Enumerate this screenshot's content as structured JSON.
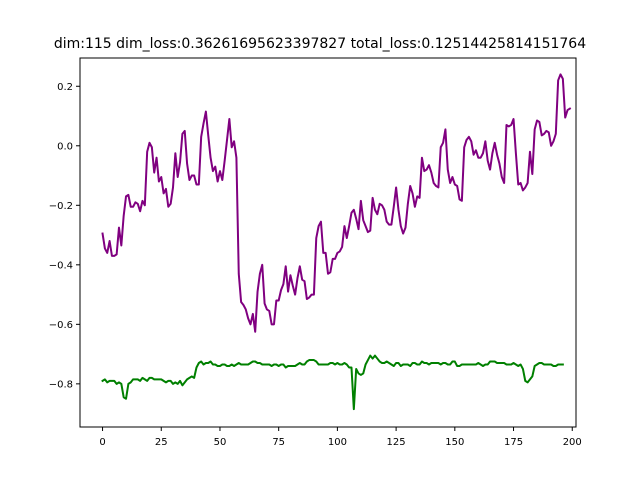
{
  "chart_data": {
    "type": "line",
    "title": "dim:115 dim_loss:0.36261695623397827 total_loss:0.12514425814151764",
    "xlabel": "",
    "ylabel": "",
    "xlim": [
      -9.6,
      201.6
    ],
    "ylim": [
      -0.945,
      0.295
    ],
    "x_ticks": [
      0,
      25,
      50,
      75,
      100,
      125,
      150,
      175,
      200
    ],
    "y_ticks": [
      -0.8,
      -0.6,
      -0.4,
      -0.2,
      0.0,
      0.2
    ],
    "y_tick_labels": [
      "−0.8",
      "−0.6",
      "−0.4",
      "−0.2",
      "0.0",
      "0.2"
    ],
    "grid": false,
    "legend": "none",
    "series": [
      {
        "color": "#800080",
        "x_start": 0,
        "values": [
          -0.295,
          -0.345,
          -0.36,
          -0.32,
          -0.37,
          -0.37,
          -0.365,
          -0.275,
          -0.335,
          -0.235,
          -0.17,
          -0.165,
          -0.205,
          -0.205,
          -0.19,
          -0.195,
          -0.22,
          -0.185,
          -0.2,
          -0.02,
          0.01,
          -0.005,
          -0.09,
          -0.04,
          -0.12,
          -0.105,
          -0.16,
          -0.145,
          -0.205,
          -0.195,
          -0.14,
          -0.025,
          -0.105,
          -0.055,
          0.04,
          0.05,
          -0.06,
          -0.115,
          -0.1,
          -0.1,
          -0.13,
          -0.13,
          0.03,
          0.075,
          0.115,
          0.035,
          -0.04,
          -0.085,
          -0.07,
          -0.12,
          -0.085,
          -0.115,
          -0.05,
          0.02,
          0.09,
          -0.005,
          0.015,
          -0.04,
          -0.43,
          -0.525,
          -0.535,
          -0.55,
          -0.58,
          -0.6,
          -0.565,
          -0.625,
          -0.49,
          -0.43,
          -0.4,
          -0.53,
          -0.55,
          -0.555,
          -0.6,
          -0.6,
          -0.52,
          -0.52,
          -0.485,
          -0.465,
          -0.405,
          -0.49,
          -0.435,
          -0.47,
          -0.5,
          -0.445,
          -0.405,
          -0.45,
          -0.455,
          -0.515,
          -0.51,
          -0.5,
          -0.5,
          -0.31,
          -0.27,
          -0.255,
          -0.36,
          -0.36,
          -0.43,
          -0.425,
          -0.38,
          -0.38,
          -0.36,
          -0.355,
          -0.34,
          -0.27,
          -0.31,
          -0.27,
          -0.225,
          -0.215,
          -0.245,
          -0.28,
          -0.185,
          -0.25,
          -0.27,
          -0.29,
          -0.285,
          -0.175,
          -0.215,
          -0.23,
          -0.195,
          -0.2,
          -0.215,
          -0.255,
          -0.265,
          -0.265,
          -0.205,
          -0.14,
          -0.215,
          -0.27,
          -0.295,
          -0.275,
          -0.195,
          -0.135,
          -0.16,
          -0.205,
          -0.17,
          -0.175,
          -0.04,
          -0.085,
          -0.08,
          -0.065,
          -0.09,
          -0.125,
          -0.135,
          -0.14,
          -0.005,
          0.01,
          0.055,
          -0.08,
          -0.125,
          -0.105,
          -0.13,
          -0.135,
          -0.18,
          -0.185,
          -0.005,
          0.02,
          0.03,
          0.015,
          -0.03,
          -0.015,
          -0.04,
          -0.04,
          -0.025,
          0.015,
          -0.05,
          -0.08,
          -0.025,
          0.01,
          -0.03,
          -0.06,
          -0.105,
          -0.125,
          0.07,
          0.065,
          0.07,
          0.09,
          -0.025,
          -0.13,
          -0.125,
          -0.15,
          -0.14,
          -0.125,
          -0.02,
          -0.095,
          0.055,
          0.085,
          0.08,
          0.035,
          0.04,
          0.05,
          0.045,
          0,
          0.015,
          0.04,
          0.22,
          0.24,
          0.225,
          0.095,
          0.12,
          0.125
        ]
      },
      {
        "color": "#008000",
        "x_start": 0,
        "values": [
          -0.79,
          -0.785,
          -0.795,
          -0.79,
          -0.79,
          -0.79,
          -0.8,
          -0.795,
          -0.8,
          -0.845,
          -0.85,
          -0.8,
          -0.795,
          -0.785,
          -0.785,
          -0.785,
          -0.79,
          -0.78,
          -0.785,
          -0.79,
          -0.78,
          -0.78,
          -0.785,
          -0.785,
          -0.785,
          -0.785,
          -0.79,
          -0.795,
          -0.79,
          -0.79,
          -0.8,
          -0.795,
          -0.8,
          -0.79,
          -0.805,
          -0.795,
          -0.785,
          -0.78,
          -0.775,
          -0.78,
          -0.745,
          -0.73,
          -0.725,
          -0.735,
          -0.73,
          -0.73,
          -0.725,
          -0.735,
          -0.735,
          -0.74,
          -0.74,
          -0.735,
          -0.735,
          -0.74,
          -0.74,
          -0.735,
          -0.74,
          -0.735,
          -0.73,
          -0.735,
          -0.735,
          -0.735,
          -0.735,
          -0.73,
          -0.725,
          -0.725,
          -0.73,
          -0.73,
          -0.735,
          -0.735,
          -0.735,
          -0.735,
          -0.74,
          -0.735,
          -0.735,
          -0.74,
          -0.735,
          -0.735,
          -0.745,
          -0.74,
          -0.74,
          -0.74,
          -0.74,
          -0.735,
          -0.73,
          -0.735,
          -0.735,
          -0.725,
          -0.72,
          -0.72,
          -0.72,
          -0.725,
          -0.735,
          -0.735,
          -0.735,
          -0.735,
          -0.735,
          -0.73,
          -0.73,
          -0.735,
          -0.73,
          -0.735,
          -0.735,
          -0.73,
          -0.735,
          -0.745,
          -0.745,
          -0.885,
          -0.75,
          -0.765,
          -0.77,
          -0.765,
          -0.735,
          -0.72,
          -0.705,
          -0.715,
          -0.705,
          -0.715,
          -0.725,
          -0.73,
          -0.73,
          -0.725,
          -0.73,
          -0.735,
          -0.74,
          -0.73,
          -0.73,
          -0.74,
          -0.735,
          -0.735,
          -0.735,
          -0.74,
          -0.73,
          -0.73,
          -0.735,
          -0.735,
          -0.725,
          -0.73,
          -0.73,
          -0.735,
          -0.73,
          -0.73,
          -0.73,
          -0.73,
          -0.735,
          -0.73,
          -0.73,
          -0.735,
          -0.735,
          -0.725,
          -0.725,
          -0.74,
          -0.74,
          -0.735,
          -0.735,
          -0.735,
          -0.735,
          -0.735,
          -0.735,
          -0.735,
          -0.73,
          -0.735,
          -0.74,
          -0.735,
          -0.735,
          -0.725,
          -0.725,
          -0.725,
          -0.73,
          -0.73,
          -0.73,
          -0.73,
          -0.735,
          -0.735,
          -0.735,
          -0.73,
          -0.735,
          -0.74,
          -0.735,
          -0.75,
          -0.79,
          -0.795,
          -0.785,
          -0.775,
          -0.74,
          -0.735,
          -0.73,
          -0.73,
          -0.735,
          -0.735,
          -0.735,
          -0.735,
          -0.74,
          -0.74,
          -0.735,
          -0.735,
          -0.735
        ]
      }
    ]
  }
}
